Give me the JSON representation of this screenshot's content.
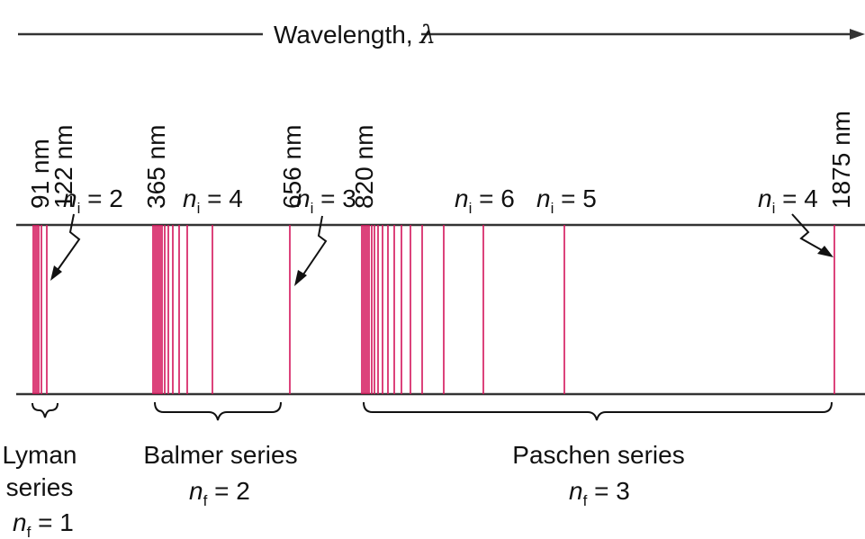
{
  "axis": {
    "title_word": "Wavelength,",
    "title_symbol": "λ"
  },
  "wavelength_labels": [
    {
      "id": "w91",
      "text": "91 nm"
    },
    {
      "id": "w122",
      "text": "122 nm"
    },
    {
      "id": "w365",
      "text": "365 nm"
    },
    {
      "id": "w656",
      "text": "656 nm"
    },
    {
      "id": "w820",
      "text": "820 nm"
    },
    {
      "id": "w1875",
      "text": "1875 nm"
    }
  ],
  "ni_labels": [
    {
      "id": "lyman-ni2",
      "var": "n",
      "sub": "i",
      "eq": " = 2"
    },
    {
      "id": "balmer-ni4",
      "var": "n",
      "sub": "i",
      "eq": " = 4"
    },
    {
      "id": "balmer-ni3",
      "var": "n",
      "sub": "i",
      "eq": " = 3"
    },
    {
      "id": "paschen-ni6",
      "var": "n",
      "sub": "i",
      "eq": " = 6"
    },
    {
      "id": "paschen-ni5",
      "var": "n",
      "sub": "i",
      "eq": " = 5"
    },
    {
      "id": "paschen-ni4",
      "var": "n",
      "sub": "i",
      "eq": " = 4"
    }
  ],
  "series": [
    {
      "id": "lyman",
      "name_lines": [
        "Lyman",
        "series"
      ],
      "nf": {
        "var": "n",
        "sub": "f",
        "eq": " = 1"
      }
    },
    {
      "id": "balmer",
      "name_lines": [
        "Balmer series"
      ],
      "nf": {
        "var": "n",
        "sub": "f",
        "eq": " = 2"
      }
    },
    {
      "id": "paschen",
      "name_lines": [
        "Paschen series"
      ],
      "nf": {
        "var": "n",
        "sub": "f",
        "eq": " = 3"
      }
    }
  ],
  "colors": {
    "spectral_line": "#d4145a",
    "axis": "#333333",
    "text": "#111111"
  }
}
